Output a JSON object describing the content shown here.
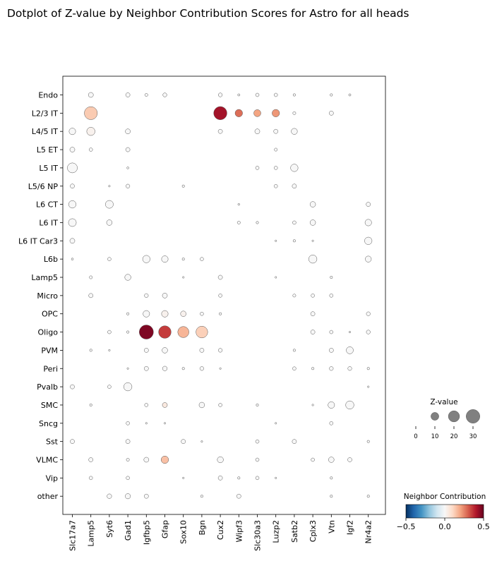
{
  "chart_data": {
    "type": "scatter",
    "title": "Dotplot of Z-value by Neighbor Contribution Scores for Astro for all heads",
    "genes": [
      "Slc17a7",
      "Lamp5",
      "Syt6",
      "Gad1",
      "Igfbp5",
      "Gfap",
      "Sox10",
      "Bgn",
      "Cux2",
      "Wipf3",
      "Slc30a3",
      "Luzp2",
      "Satb2",
      "Cplx3",
      "Vtn",
      "Igf2",
      "Nr4a2"
    ],
    "cell_types": [
      "Endo",
      "L2/3 IT",
      "L4/5 IT",
      "L5 ET",
      "L5 IT",
      "L5/6 NP",
      "L6 CT",
      "L6 IT",
      "L6 IT Car3",
      "L6b",
      "Lamp5",
      "Micro",
      "OPC",
      "Oligo",
      "PVM",
      "Peri",
      "Pvalb",
      "SMC",
      "Sncg",
      "Sst",
      "VLMC",
      "Vip",
      "other"
    ],
    "points": [
      {
        "cell": "Endo",
        "gene": "Lamp5",
        "z": 4,
        "c": 0.0
      },
      {
        "cell": "Endo",
        "gene": "Gad1",
        "z": 3,
        "c": 0.0
      },
      {
        "cell": "Endo",
        "gene": "Igfbp5",
        "z": 1.5,
        "c": 0.0
      },
      {
        "cell": "Endo",
        "gene": "Gfap",
        "z": 2.5,
        "c": 0.0
      },
      {
        "cell": "Endo",
        "gene": "Cux2",
        "z": 2.5,
        "c": 0.0
      },
      {
        "cell": "Endo",
        "gene": "Wipf3",
        "z": 0.8,
        "c": 0.0
      },
      {
        "cell": "Endo",
        "gene": "Slc30a3",
        "z": 2,
        "c": 0.0
      },
      {
        "cell": "Endo",
        "gene": "Luzp2",
        "z": 2,
        "c": 0.0
      },
      {
        "cell": "Endo",
        "gene": "Satb2",
        "z": 1,
        "c": 0.0
      },
      {
        "cell": "Endo",
        "gene": "Vtn",
        "z": 1,
        "c": 0.0
      },
      {
        "cell": "Endo",
        "gene": "Igf2",
        "z": 0.8,
        "c": 0.0
      },
      {
        "cell": "L2/3 IT",
        "gene": "Lamp5",
        "z": 27,
        "c": 0.13
      },
      {
        "cell": "L2/3 IT",
        "gene": "Cux2",
        "z": 28,
        "c": 0.42
      },
      {
        "cell": "L2/3 IT",
        "gene": "Wipf3",
        "z": 9,
        "c": 0.28
      },
      {
        "cell": "L2/3 IT",
        "gene": "Slc30a3",
        "z": 8,
        "c": 0.2
      },
      {
        "cell": "L2/3 IT",
        "gene": "Luzp2",
        "z": 9,
        "c": 0.22
      },
      {
        "cell": "L2/3 IT",
        "gene": "Satb2",
        "z": 1.5,
        "c": 0.0
      },
      {
        "cell": "L2/3 IT",
        "gene": "Vtn",
        "z": 3,
        "c": 0.0
      },
      {
        "cell": "L4/5 IT",
        "gene": "Slc17a7",
        "z": 7,
        "c": 0.0
      },
      {
        "cell": "L4/5 IT",
        "gene": "Lamp5",
        "z": 11,
        "c": 0.02
      },
      {
        "cell": "L4/5 IT",
        "gene": "Gad1",
        "z": 4,
        "c": 0.0
      },
      {
        "cell": "L4/5 IT",
        "gene": "Cux2",
        "z": 3,
        "c": 0.0
      },
      {
        "cell": "L4/5 IT",
        "gene": "Slc30a3",
        "z": 4,
        "c": 0.0
      },
      {
        "cell": "L4/5 IT",
        "gene": "Luzp2",
        "z": 3,
        "c": 0.0
      },
      {
        "cell": "L4/5 IT",
        "gene": "Satb2",
        "z": 6,
        "c": 0.0
      },
      {
        "cell": "L5 ET",
        "gene": "Slc17a7",
        "z": 4,
        "c": 0.0
      },
      {
        "cell": "L5 ET",
        "gene": "Lamp5",
        "z": 2,
        "c": 0.0
      },
      {
        "cell": "L5 ET",
        "gene": "Gad1",
        "z": 3,
        "c": 0.0
      },
      {
        "cell": "L5 ET",
        "gene": "Luzp2",
        "z": 1.5,
        "c": 0.0
      },
      {
        "cell": "L5 IT",
        "gene": "Slc17a7",
        "z": 16,
        "c": 0.0
      },
      {
        "cell": "L5 IT",
        "gene": "Gad1",
        "z": 0.7,
        "c": 0.0
      },
      {
        "cell": "L5 IT",
        "gene": "Slc30a3",
        "z": 2,
        "c": 0.0
      },
      {
        "cell": "L5 IT",
        "gene": "Luzp2",
        "z": 2,
        "c": 0.0
      },
      {
        "cell": "L5 IT",
        "gene": "Satb2",
        "z": 9,
        "c": 0.0
      },
      {
        "cell": "L5/6 NP",
        "gene": "Slc17a7",
        "z": 3,
        "c": 0.0
      },
      {
        "cell": "L5/6 NP",
        "gene": "Syt6",
        "z": 0.5,
        "c": 0.0
      },
      {
        "cell": "L5/6 NP",
        "gene": "Gad1",
        "z": 2.5,
        "c": 0.0
      },
      {
        "cell": "L5/6 NP",
        "gene": "Sox10",
        "z": 1,
        "c": 0.0
      },
      {
        "cell": "L5/6 NP",
        "gene": "Luzp2",
        "z": 2,
        "c": 0.0
      },
      {
        "cell": "L5/6 NP",
        "gene": "Satb2",
        "z": 3,
        "c": 0.0
      },
      {
        "cell": "L6 CT",
        "gene": "Slc17a7",
        "z": 9,
        "c": 0.0
      },
      {
        "cell": "L6 CT",
        "gene": "Syt6",
        "z": 10,
        "c": 0.0
      },
      {
        "cell": "L6 CT",
        "gene": "Wipf3",
        "z": 0.6,
        "c": 0.0
      },
      {
        "cell": "L6 CT",
        "gene": "Cplx3",
        "z": 5,
        "c": 0.0
      },
      {
        "cell": "L6 CT",
        "gene": "Nr4a2",
        "z": 3,
        "c": 0.0
      },
      {
        "cell": "L6 IT",
        "gene": "Slc17a7",
        "z": 10,
        "c": 0.0
      },
      {
        "cell": "L6 IT",
        "gene": "Syt6",
        "z": 5,
        "c": 0.0
      },
      {
        "cell": "L6 IT",
        "gene": "Wipf3",
        "z": 1.5,
        "c": 0.0
      },
      {
        "cell": "L6 IT",
        "gene": "Slc30a3",
        "z": 1,
        "c": 0.0
      },
      {
        "cell": "L6 IT",
        "gene": "Satb2",
        "z": 2,
        "c": 0.0
      },
      {
        "cell": "L6 IT",
        "gene": "Cplx3",
        "z": 5,
        "c": 0.0
      },
      {
        "cell": "L6 IT",
        "gene": "Nr4a2",
        "z": 7,
        "c": 0.0
      },
      {
        "cell": "L6 IT Car3",
        "gene": "Slc17a7",
        "z": 4,
        "c": 0.0
      },
      {
        "cell": "L6 IT Car3",
        "gene": "Luzp2",
        "z": 0.5,
        "c": 0.0
      },
      {
        "cell": "L6 IT Car3",
        "gene": "Satb2",
        "z": 1,
        "c": 0.0
      },
      {
        "cell": "L6 IT Car3",
        "gene": "Cplx3",
        "z": 0.5,
        "c": 0.0
      },
      {
        "cell": "L6 IT Car3",
        "gene": "Nr4a2",
        "z": 9,
        "c": 0.0
      },
      {
        "cell": "L6b",
        "gene": "Slc17a7",
        "z": 0.7,
        "c": 0.0
      },
      {
        "cell": "L6b",
        "gene": "Syt6",
        "z": 2,
        "c": 0.0
      },
      {
        "cell": "L6b",
        "gene": "Igfbp5",
        "z": 9,
        "c": 0.0
      },
      {
        "cell": "L6b",
        "gene": "Gfap",
        "z": 7,
        "c": 0.0
      },
      {
        "cell": "L6b",
        "gene": "Sox10",
        "z": 1,
        "c": 0.0
      },
      {
        "cell": "L6b",
        "gene": "Bgn",
        "z": 2,
        "c": 0.0
      },
      {
        "cell": "L6b",
        "gene": "Cplx3",
        "z": 11,
        "c": 0.0
      },
      {
        "cell": "L6b",
        "gene": "Nr4a2",
        "z": 6,
        "c": 0.0
      },
      {
        "cell": "Lamp5",
        "gene": "Lamp5",
        "z": 1.5,
        "c": 0.0
      },
      {
        "cell": "Lamp5",
        "gene": "Gad1",
        "z": 6,
        "c": 0.0
      },
      {
        "cell": "Lamp5",
        "gene": "Sox10",
        "z": 0.5,
        "c": 0.0
      },
      {
        "cell": "Lamp5",
        "gene": "Cux2",
        "z": 3,
        "c": 0.0
      },
      {
        "cell": "Lamp5",
        "gene": "Luzp2",
        "z": 0.5,
        "c": 0.0
      },
      {
        "cell": "Lamp5",
        "gene": "Vtn",
        "z": 1,
        "c": 0.0
      },
      {
        "cell": "Micro",
        "gene": "Lamp5",
        "z": 3,
        "c": 0.0
      },
      {
        "cell": "Micro",
        "gene": "Igfbp5",
        "z": 2.5,
        "c": 0.0
      },
      {
        "cell": "Micro",
        "gene": "Gfap",
        "z": 4,
        "c": 0.0
      },
      {
        "cell": "Micro",
        "gene": "Cux2",
        "z": 2,
        "c": 0.0
      },
      {
        "cell": "Micro",
        "gene": "Satb2",
        "z": 1.5,
        "c": 0.0
      },
      {
        "cell": "Micro",
        "gene": "Cplx3",
        "z": 2,
        "c": 0.0
      },
      {
        "cell": "Micro",
        "gene": "Vtn",
        "z": 2,
        "c": 0.0
      },
      {
        "cell": "OPC",
        "gene": "Gad1",
        "z": 1,
        "c": 0.0
      },
      {
        "cell": "OPC",
        "gene": "Igfbp5",
        "z": 7,
        "c": 0.0
      },
      {
        "cell": "OPC",
        "gene": "Gfap",
        "z": 7,
        "c": 0.02
      },
      {
        "cell": "OPC",
        "gene": "Sox10",
        "z": 5,
        "c": 0.02
      },
      {
        "cell": "OPC",
        "gene": "Bgn",
        "z": 2,
        "c": 0.0
      },
      {
        "cell": "OPC",
        "gene": "Cux2",
        "z": 1,
        "c": 0.0
      },
      {
        "cell": "OPC",
        "gene": "Cplx3",
        "z": 3,
        "c": 0.0
      },
      {
        "cell": "OPC",
        "gene": "Nr4a2",
        "z": 2.5,
        "c": 0.0
      },
      {
        "cell": "Oligo",
        "gene": "Syt6",
        "z": 2,
        "c": 0.0
      },
      {
        "cell": "Oligo",
        "gene": "Gad1",
        "z": 1,
        "c": 0.0
      },
      {
        "cell": "Oligo",
        "gene": "Igfbp5",
        "z": 32,
        "c": 0.47
      },
      {
        "cell": "Oligo",
        "gene": "Gfap",
        "z": 25,
        "c": 0.35
      },
      {
        "cell": "Oligo",
        "gene": "Sox10",
        "z": 20,
        "c": 0.17
      },
      {
        "cell": "Oligo",
        "gene": "Bgn",
        "z": 22,
        "c": 0.12
      },
      {
        "cell": "Oligo",
        "gene": "Cplx3",
        "z": 3,
        "c": 0.0
      },
      {
        "cell": "Oligo",
        "gene": "Vtn",
        "z": 2,
        "c": 0.0
      },
      {
        "cell": "Oligo",
        "gene": "Igf2",
        "z": 0.5,
        "c": 0.0
      },
      {
        "cell": "Oligo",
        "gene": "Nr4a2",
        "z": 2.5,
        "c": 0.0
      },
      {
        "cell": "PVM",
        "gene": "Lamp5",
        "z": 1,
        "c": 0.0
      },
      {
        "cell": "PVM",
        "gene": "Syt6",
        "z": 0.5,
        "c": 0.0
      },
      {
        "cell": "PVM",
        "gene": "Igfbp5",
        "z": 3,
        "c": 0.0
      },
      {
        "cell": "PVM",
        "gene": "Gfap",
        "z": 5,
        "c": 0.0
      },
      {
        "cell": "PVM",
        "gene": "Bgn",
        "z": 3,
        "c": 0.0
      },
      {
        "cell": "PVM",
        "gene": "Cux2",
        "z": 2.5,
        "c": 0.0
      },
      {
        "cell": "PVM",
        "gene": "Satb2",
        "z": 1,
        "c": 0.0
      },
      {
        "cell": "PVM",
        "gene": "Vtn",
        "z": 3,
        "c": 0.0
      },
      {
        "cell": "PVM",
        "gene": "Igf2",
        "z": 8,
        "c": 0.0
      },
      {
        "cell": "Peri",
        "gene": "Gad1",
        "z": 0.5,
        "c": 0.0
      },
      {
        "cell": "Peri",
        "gene": "Igfbp5",
        "z": 3,
        "c": 0.0
      },
      {
        "cell": "Peri",
        "gene": "Gfap",
        "z": 3.5,
        "c": 0.0
      },
      {
        "cell": "Peri",
        "gene": "Sox10",
        "z": 1,
        "c": 0.0
      },
      {
        "cell": "Peri",
        "gene": "Bgn",
        "z": 2.5,
        "c": 0.0
      },
      {
        "cell": "Peri",
        "gene": "Cux2",
        "z": 0.5,
        "c": 0.0
      },
      {
        "cell": "Peri",
        "gene": "Satb2",
        "z": 2,
        "c": 0.0
      },
      {
        "cell": "Peri",
        "gene": "Cplx3",
        "z": 1,
        "c": 0.0
      },
      {
        "cell": "Peri",
        "gene": "Vtn",
        "z": 2.5,
        "c": 0.0
      },
      {
        "cell": "Peri",
        "gene": "Igf2",
        "z": 2.5,
        "c": 0.0
      },
      {
        "cell": "Peri",
        "gene": "Nr4a2",
        "z": 1,
        "c": 0.0
      },
      {
        "cell": "Pvalb",
        "gene": "Slc17a7",
        "z": 3,
        "c": 0.0
      },
      {
        "cell": "Pvalb",
        "gene": "Syt6",
        "z": 2,
        "c": 0.0
      },
      {
        "cell": "Pvalb",
        "gene": "Gad1",
        "z": 11,
        "c": 0.0
      },
      {
        "cell": "Pvalb",
        "gene": "Nr4a2",
        "z": 0.5,
        "c": 0.0
      },
      {
        "cell": "SMC",
        "gene": "Lamp5",
        "z": 1,
        "c": 0.0
      },
      {
        "cell": "SMC",
        "gene": "Igfbp5",
        "z": 2,
        "c": 0.0
      },
      {
        "cell": "SMC",
        "gene": "Gfap",
        "z": 4,
        "c": 0.05
      },
      {
        "cell": "SMC",
        "gene": "Bgn",
        "z": 5,
        "c": 0.0
      },
      {
        "cell": "SMC",
        "gene": "Cux2",
        "z": 2,
        "c": 0.0
      },
      {
        "cell": "SMC",
        "gene": "Slc30a3",
        "z": 1,
        "c": 0.0
      },
      {
        "cell": "SMC",
        "gene": "Cplx3",
        "z": 0.5,
        "c": 0.0
      },
      {
        "cell": "SMC",
        "gene": "Vtn",
        "z": 7,
        "c": 0.0
      },
      {
        "cell": "SMC",
        "gene": "Igf2",
        "z": 11,
        "c": 0.0
      },
      {
        "cell": "Sncg",
        "gene": "Gad1",
        "z": 2,
        "c": 0.0
      },
      {
        "cell": "Sncg",
        "gene": "Igfbp5",
        "z": 0.5,
        "c": 0.0
      },
      {
        "cell": "Sncg",
        "gene": "Gfap",
        "z": 0.5,
        "c": 0.0
      },
      {
        "cell": "Sncg",
        "gene": "Luzp2",
        "z": 0.5,
        "c": 0.0
      },
      {
        "cell": "Sncg",
        "gene": "Vtn",
        "z": 2,
        "c": 0.0
      },
      {
        "cell": "Sst",
        "gene": "Slc17a7",
        "z": 3,
        "c": 0.0
      },
      {
        "cell": "Sst",
        "gene": "Gad1",
        "z": 3,
        "c": 0.0
      },
      {
        "cell": "Sst",
        "gene": "Sox10",
        "z": 3,
        "c": 0.0
      },
      {
        "cell": "Sst",
        "gene": "Bgn",
        "z": 0.5,
        "c": 0.0
      },
      {
        "cell": "Sst",
        "gene": "Slc30a3",
        "z": 2,
        "c": 0.0
      },
      {
        "cell": "Sst",
        "gene": "Satb2",
        "z": 3,
        "c": 0.0
      },
      {
        "cell": "Sst",
        "gene": "Nr4a2",
        "z": 1,
        "c": 0.0
      },
      {
        "cell": "VLMC",
        "gene": "Lamp5",
        "z": 3,
        "c": 0.0
      },
      {
        "cell": "VLMC",
        "gene": "Gad1",
        "z": 1.5,
        "c": 0.0
      },
      {
        "cell": "VLMC",
        "gene": "Igfbp5",
        "z": 4,
        "c": 0.0
      },
      {
        "cell": "VLMC",
        "gene": "Gfap",
        "z": 9,
        "c": 0.15
      },
      {
        "cell": "VLMC",
        "gene": "Cux2",
        "z": 6,
        "c": 0.0
      },
      {
        "cell": "VLMC",
        "gene": "Slc30a3",
        "z": 2,
        "c": 0.0
      },
      {
        "cell": "VLMC",
        "gene": "Cplx3",
        "z": 2,
        "c": 0.0
      },
      {
        "cell": "VLMC",
        "gene": "Vtn",
        "z": 5,
        "c": 0.0
      },
      {
        "cell": "VLMC",
        "gene": "Igf2",
        "z": 3,
        "c": 0.0
      },
      {
        "cell": "Vip",
        "gene": "Lamp5",
        "z": 2,
        "c": 0.0
      },
      {
        "cell": "Vip",
        "gene": "Gad1",
        "z": 2,
        "c": 0.0
      },
      {
        "cell": "Vip",
        "gene": "Sox10",
        "z": 0.5,
        "c": 0.0
      },
      {
        "cell": "Vip",
        "gene": "Cux2",
        "z": 3,
        "c": 0.0
      },
      {
        "cell": "Vip",
        "gene": "Wipf3",
        "z": 1,
        "c": 0.0
      },
      {
        "cell": "Vip",
        "gene": "Slc30a3",
        "z": 2,
        "c": 0.0
      },
      {
        "cell": "Vip",
        "gene": "Luzp2",
        "z": 0.5,
        "c": 0.0
      },
      {
        "cell": "Vip",
        "gene": "Vtn",
        "z": 1,
        "c": 0.0
      },
      {
        "cell": "other",
        "gene": "Syt6",
        "z": 3.5,
        "c": 0.0
      },
      {
        "cell": "other",
        "gene": "Gad1",
        "z": 4.5,
        "c": 0.0
      },
      {
        "cell": "other",
        "gene": "Igfbp5",
        "z": 3,
        "c": 0.0
      },
      {
        "cell": "other",
        "gene": "Bgn",
        "z": 1,
        "c": 0.0
      },
      {
        "cell": "other",
        "gene": "Wipf3",
        "z": 3,
        "c": 0.0
      },
      {
        "cell": "other",
        "gene": "Vtn",
        "z": 1,
        "c": 0.0
      },
      {
        "cell": "other",
        "gene": "Nr4a2",
        "z": 1,
        "c": 0.0
      }
    ],
    "size_legend": {
      "title": "Z-value",
      "ticks": [
        0,
        10,
        20,
        30
      ],
      "tick_labels": [
        "0",
        "10",
        "20",
        "30"
      ]
    },
    "color_legend": {
      "title": "Neighbor Contribution",
      "range": [
        -0.5,
        0.5
      ],
      "ticks": [
        -0.5,
        0.0,
        0.5
      ],
      "tick_labels": [
        "−0.5",
        "0.0",
        "0.5"
      ],
      "colormap": "RdBu_r"
    },
    "colors": {
      "marker_edge": "#555555",
      "size_legend_fill": "#808080"
    }
  }
}
